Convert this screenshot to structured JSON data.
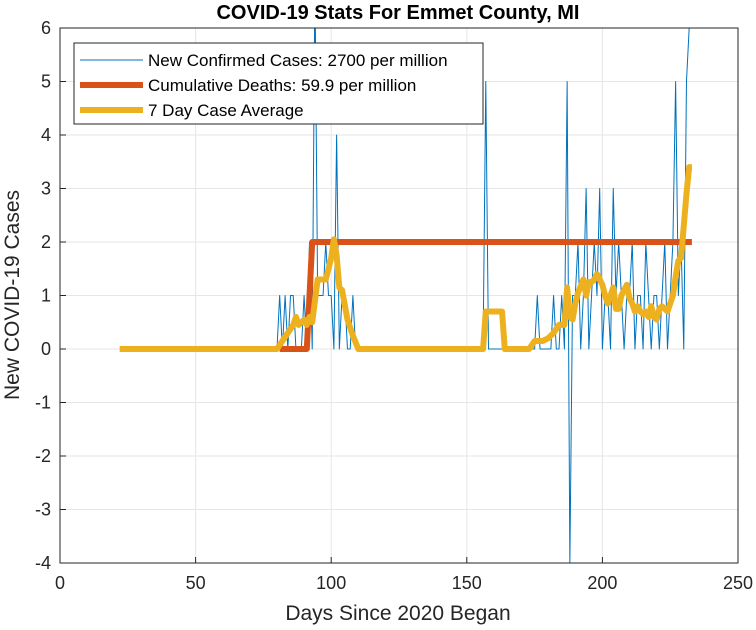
{
  "chart_data": {
    "type": "line",
    "title": "COVID-19 Stats For Emmet County, MI",
    "xlabel": "Days Since 2020 Began",
    "ylabel": "New COVID-19 Cases",
    "xlim": [
      0,
      250
    ],
    "ylim": [
      -4,
      6
    ],
    "xticks": [
      0,
      50,
      100,
      150,
      200,
      250
    ],
    "yticks": [
      -4,
      -3,
      -2,
      -1,
      0,
      1,
      2,
      3,
      4,
      5,
      6
    ],
    "x_tick_labels": [
      "0",
      "50",
      "100",
      "150",
      "200",
      "250"
    ],
    "y_tick_labels": [
      "-4",
      "-3",
      "-2",
      "-1",
      "0",
      "1",
      "2",
      "3",
      "4",
      "5",
      "6"
    ],
    "grid": true,
    "legend_position": "top-left",
    "series": [
      {
        "name": "New Confirmed Cases: 2700 per million",
        "color": "#0072BD",
        "style": "thin",
        "points": [
          [
            80,
            0
          ],
          [
            81,
            1
          ],
          [
            82,
            0
          ],
          [
            83,
            1
          ],
          [
            84,
            0
          ],
          [
            85,
            1
          ],
          [
            86,
            1
          ],
          [
            87,
            0
          ],
          [
            88,
            0
          ],
          [
            89,
            0
          ],
          [
            90,
            1
          ],
          [
            91,
            0
          ],
          [
            92,
            2
          ],
          [
            93,
            0
          ],
          [
            94,
            7
          ],
          [
            95,
            1
          ],
          [
            96,
            1
          ],
          [
            97,
            1
          ],
          [
            98,
            2
          ],
          [
            99,
            1
          ],
          [
            100,
            1
          ],
          [
            101,
            0
          ],
          [
            102,
            4
          ],
          [
            103,
            0
          ],
          [
            104,
            1
          ],
          [
            105,
            1
          ],
          [
            106,
            0
          ],
          [
            107,
            0
          ],
          [
            108,
            1
          ],
          [
            109,
            0
          ],
          [
            110,
            0
          ],
          [
            155,
            0
          ],
          [
            156,
            0
          ],
          [
            157,
            5
          ],
          [
            158,
            0
          ],
          [
            159,
            0
          ],
          [
            160,
            0
          ],
          [
            161,
            0
          ],
          [
            162,
            0
          ],
          [
            163,
            0
          ],
          [
            164,
            0
          ],
          [
            165,
            0
          ],
          [
            166,
            0
          ],
          [
            167,
            0
          ],
          [
            168,
            0
          ],
          [
            169,
            0
          ],
          [
            170,
            0
          ],
          [
            171,
            0
          ],
          [
            172,
            0
          ],
          [
            173,
            0
          ],
          [
            174,
            0
          ],
          [
            175,
            0
          ],
          [
            176,
            1
          ],
          [
            177,
            0
          ],
          [
            178,
            0
          ],
          [
            179,
            0
          ],
          [
            180,
            0
          ],
          [
            181,
            0
          ],
          [
            182,
            1
          ],
          [
            183,
            0
          ],
          [
            184,
            0
          ],
          [
            185,
            1
          ],
          [
            186,
            0
          ],
          [
            187,
            5
          ],
          [
            188,
            -4
          ],
          [
            189,
            1
          ],
          [
            190,
            1
          ],
          [
            191,
            2
          ],
          [
            192,
            0
          ],
          [
            193,
            1
          ],
          [
            194,
            3
          ],
          [
            195,
            0
          ],
          [
            196,
            1
          ],
          [
            197,
            2
          ],
          [
            198,
            1
          ],
          [
            199,
            3
          ],
          [
            200,
            0
          ],
          [
            201,
            1
          ],
          [
            202,
            1
          ],
          [
            203,
            0
          ],
          [
            204,
            3
          ],
          [
            205,
            1
          ],
          [
            206,
            2
          ],
          [
            207,
            1
          ],
          [
            208,
            0
          ],
          [
            209,
            1
          ],
          [
            210,
            1
          ],
          [
            211,
            2
          ],
          [
            212,
            0
          ],
          [
            213,
            1
          ],
          [
            214,
            1
          ],
          [
            215,
            0
          ],
          [
            216,
            2
          ],
          [
            217,
            1
          ],
          [
            218,
            0
          ],
          [
            219,
            1
          ],
          [
            220,
            1
          ],
          [
            221,
            0
          ],
          [
            222,
            1
          ],
          [
            223,
            2
          ],
          [
            224,
            0
          ],
          [
            225,
            1
          ],
          [
            226,
            2
          ],
          [
            227,
            5
          ],
          [
            228,
            1
          ],
          [
            229,
            2
          ],
          [
            230,
            0
          ],
          [
            231,
            5
          ],
          [
            232,
            6
          ]
        ]
      },
      {
        "name": "Cumulative Deaths: 59.9 per million",
        "color": "#D95319",
        "style": "thick",
        "points": [
          [
            81,
            0
          ],
          [
            91,
            0
          ],
          [
            92,
            1
          ],
          [
            93,
            2
          ],
          [
            233,
            2
          ]
        ]
      },
      {
        "name": "7 Day Case Average",
        "color": "#EDB120",
        "style": "thick",
        "points": [
          [
            22,
            0
          ],
          [
            80,
            0
          ],
          [
            82,
            0.15
          ],
          [
            84,
            0.3
          ],
          [
            86,
            0.45
          ],
          [
            87,
            0.6
          ],
          [
            88,
            0.45
          ],
          [
            90,
            0.55
          ],
          [
            91,
            0.45
          ],
          [
            92,
            0.6
          ],
          [
            93,
            0.5
          ],
          [
            95,
            1.3
          ],
          [
            98,
            1.3
          ],
          [
            100,
            1.7
          ],
          [
            101,
            2.05
          ],
          [
            102,
            1.75
          ],
          [
            103,
            1.15
          ],
          [
            104,
            1.1
          ],
          [
            106,
            0.55
          ],
          [
            108,
            0.25
          ],
          [
            110,
            0
          ],
          [
            156,
            0
          ],
          [
            157,
            0.7
          ],
          [
            163,
            0.7
          ],
          [
            164,
            0
          ],
          [
            173,
            0
          ],
          [
            175,
            0.15
          ],
          [
            178,
            0.15
          ],
          [
            180,
            0.2
          ],
          [
            182,
            0.3
          ],
          [
            184,
            0.45
          ],
          [
            186,
            0.45
          ],
          [
            187,
            1.15
          ],
          [
            188,
            0.6
          ],
          [
            189,
            0.55
          ],
          [
            190,
            0.85
          ],
          [
            191,
            1.05
          ],
          [
            193,
            1.3
          ],
          [
            194,
            1.0
          ],
          [
            195,
            1.25
          ],
          [
            196,
            1.25
          ],
          [
            197,
            1.3
          ],
          [
            198,
            1.4
          ],
          [
            199,
            1.3
          ],
          [
            200,
            1.2
          ],
          [
            201,
            1.0
          ],
          [
            202,
            0.85
          ],
          [
            203,
            1.0
          ],
          [
            204,
            1.15
          ],
          [
            205,
            0.75
          ],
          [
            206,
            0.75
          ],
          [
            207,
            1.0
          ],
          [
            208,
            1.1
          ],
          [
            209,
            1.2
          ],
          [
            210,
            0.95
          ],
          [
            211,
            0.85
          ],
          [
            212,
            0.7
          ],
          [
            213,
            0.8
          ],
          [
            214,
            0.7
          ],
          [
            215,
            0.65
          ],
          [
            216,
            0.7
          ],
          [
            217,
            0.6
          ],
          [
            218,
            0.8
          ],
          [
            219,
            0.6
          ],
          [
            220,
            0.55
          ],
          [
            221,
            0.75
          ],
          [
            222,
            0.8
          ],
          [
            224,
            0.7
          ],
          [
            226,
            1.0
          ],
          [
            227,
            1.35
          ],
          [
            228,
            1.65
          ],
          [
            229,
            1.7
          ],
          [
            230,
            2.3
          ],
          [
            231,
            2.9
          ],
          [
            232,
            3.4
          ],
          [
            233,
            3.4
          ]
        ]
      }
    ]
  }
}
